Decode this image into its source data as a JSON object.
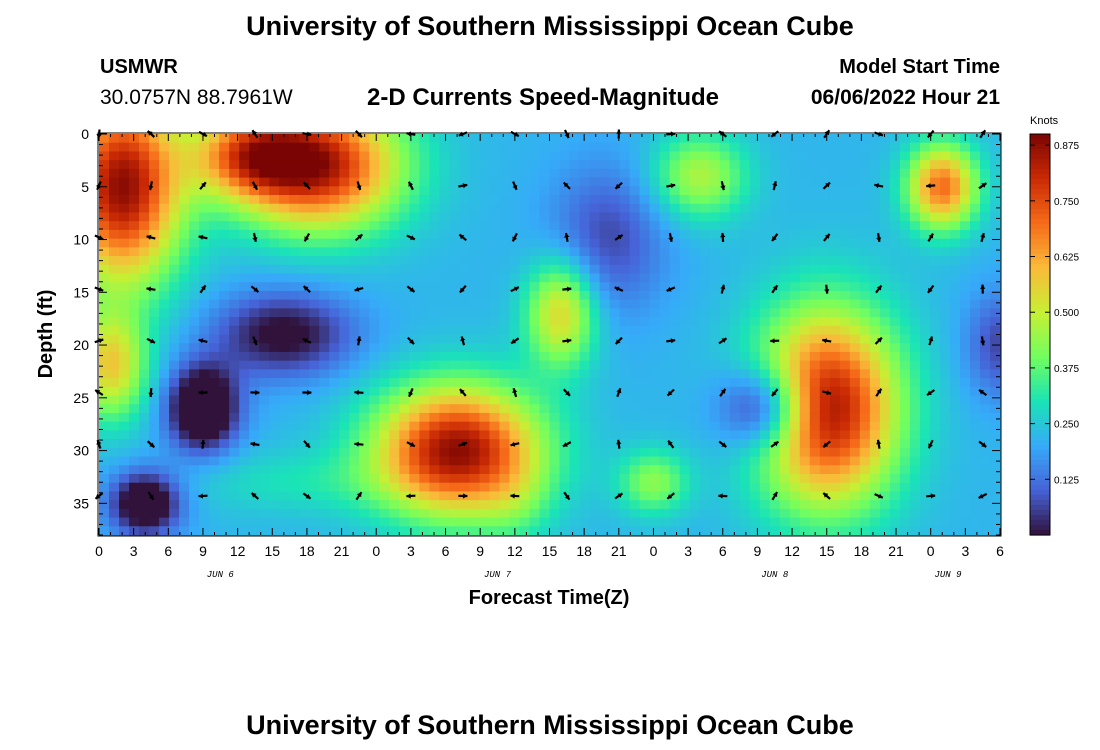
{
  "header": {
    "title": "University of Southern Mississippi Ocean Cube",
    "station": "USMWR",
    "coords": "30.0757N  88.7961W",
    "subtitle": "2-D Currents Speed-Magnitude",
    "start_label": "Model Start Time",
    "start_value": "06/06/2022 Hour 21"
  },
  "footer": {
    "title": "University of Southern Mississippi Ocean Cube"
  },
  "chart_data": {
    "type": "heatmap",
    "title": "2-D Currents Speed-Magnitude",
    "xlabel": "Forecast Time(Z)",
    "ylabel": "Depth (ft)",
    "x_ticks": [
      "0",
      "3",
      "6",
      "9",
      "12",
      "15",
      "18",
      "21",
      "0",
      "3",
      "6",
      "9",
      "12",
      "15",
      "18",
      "21",
      "0",
      "3",
      "6",
      "9",
      "12",
      "15",
      "18",
      "21",
      "0",
      "3",
      "6"
    ],
    "day_labels": [
      {
        "label": "JUN 6",
        "tick_index": 3.5
      },
      {
        "label": "JUN 7",
        "tick_index": 11.5
      },
      {
        "label": "JUN 8",
        "tick_index": 19.5
      },
      {
        "label": "JUN 9",
        "tick_index": 24.5
      }
    ],
    "x_range_hours": [
      0,
      78
    ],
    "y_ticks": [
      0,
      5,
      10,
      15,
      20,
      25,
      30,
      35
    ],
    "ylim": [
      0,
      38
    ],
    "y_reversed": true,
    "colorbar": {
      "unit": "Knots",
      "min": 0.0,
      "max": 0.9,
      "ticks": [
        "0.875",
        "0.750",
        "0.625",
        "0.500",
        "0.375",
        "0.250",
        "0.125"
      ],
      "tick_values": [
        0.875,
        0.75,
        0.625,
        0.5,
        0.375,
        0.25,
        0.125
      ]
    },
    "colormap": [
      "#30123b",
      "#4662d7",
      "#36aaf9",
      "#1ae4b6",
      "#72fe5e",
      "#c7ef34",
      "#faba39",
      "#f66b19",
      "#ca2a04",
      "#7a0403"
    ],
    "speed_centers": [
      {
        "t": 2,
        "d": 5,
        "v": 0.95,
        "rt": 5,
        "rd": 9
      },
      {
        "t": 1,
        "d": 22,
        "v": 0.6,
        "rt": 3,
        "rd": 5
      },
      {
        "t": 19,
        "d": 3,
        "v": 0.9,
        "rt": 7,
        "rd": 6
      },
      {
        "t": 13,
        "d": 2,
        "v": 0.65,
        "rt": 5,
        "rd": 4
      },
      {
        "t": 31,
        "d": 30,
        "v": 0.95,
        "rt": 7,
        "rd": 6
      },
      {
        "t": 40,
        "d": 17,
        "v": 0.6,
        "rt": 3,
        "rd": 5
      },
      {
        "t": 36,
        "d": 35,
        "v": 0.3,
        "rt": 3,
        "rd": 4
      },
      {
        "t": 52,
        "d": 4,
        "v": 0.5,
        "rt": 4,
        "rd": 4
      },
      {
        "t": 63,
        "d": 26,
        "v": 0.95,
        "rt": 6,
        "rd": 9
      },
      {
        "t": 73,
        "d": 5,
        "v": 0.75,
        "rt": 3,
        "rd": 4
      },
      {
        "t": 48,
        "d": 33,
        "v": 0.45,
        "rt": 3,
        "rd": 3
      },
      {
        "t": 17,
        "d": 33,
        "v": 0.3,
        "rt": 10,
        "rd": 3
      },
      {
        "t": 9,
        "d": 26,
        "v": -0.2,
        "rt": 3,
        "rd": 4
      },
      {
        "t": 4,
        "d": 35,
        "v": -0.15,
        "rt": 3,
        "rd": 3
      },
      {
        "t": 58,
        "d": 26,
        "v": -0.15,
        "rt": 4,
        "rd": 4
      },
      {
        "t": 16,
        "d": 19,
        "v": -0.05,
        "rt": 6,
        "rd": 4
      },
      {
        "t": 44,
        "d": 10,
        "v": 0.05,
        "rt": 5,
        "rd": 7
      },
      {
        "t": 78,
        "d": 20,
        "v": 0.05,
        "rt": 3,
        "rd": 5
      }
    ],
    "background_speed": 0.22
  }
}
